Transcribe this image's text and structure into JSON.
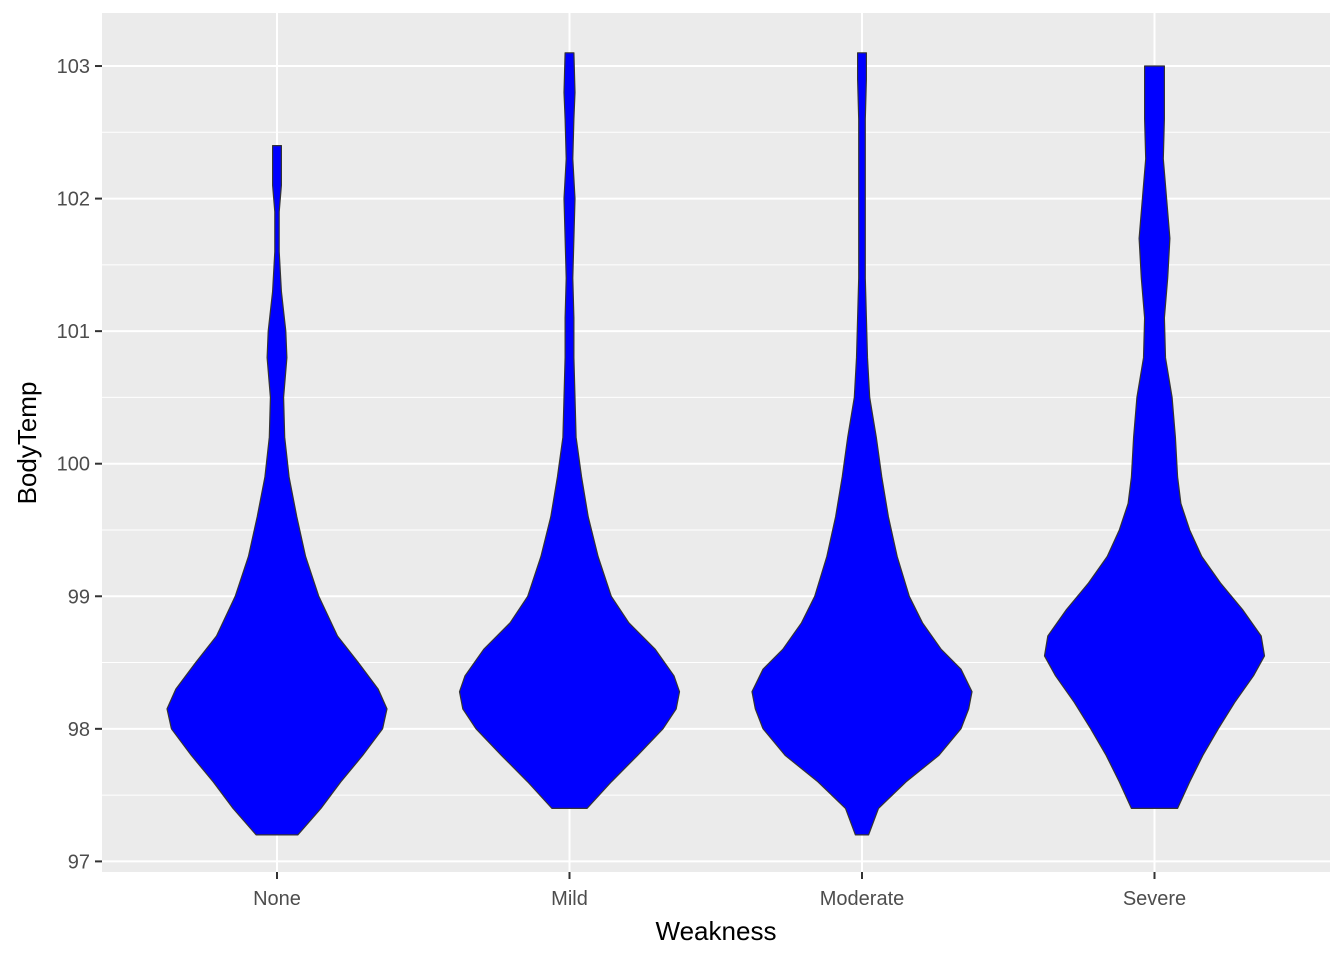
{
  "chart_data": {
    "type": "violin",
    "title": "",
    "xlabel": "Weakness",
    "ylabel": "BodyTemp",
    "categories": [
      "None",
      "Mild",
      "Moderate",
      "Severe"
    ],
    "ylim": [
      96.92,
      103.4
    ],
    "y_ticks": [
      97,
      98,
      99,
      100,
      101,
      102,
      103
    ],
    "grid": true,
    "legend": "none",
    "colors": {
      "panel_background": "#ebebeb",
      "grid": "#ffffff",
      "fill": "#0000ff",
      "outline": "#333333"
    },
    "series": [
      {
        "category": "None",
        "min": 97.2,
        "max": 102.4,
        "density_profile": [
          [
            97.2,
            0.19
          ],
          [
            97.4,
            0.4
          ],
          [
            97.6,
            0.58
          ],
          [
            97.8,
            0.78
          ],
          [
            98.0,
            0.96
          ],
          [
            98.15,
            1.0
          ],
          [
            98.3,
            0.92
          ],
          [
            98.5,
            0.74
          ],
          [
            98.7,
            0.55
          ],
          [
            99.0,
            0.38
          ],
          [
            99.3,
            0.26
          ],
          [
            99.6,
            0.18
          ],
          [
            99.9,
            0.11
          ],
          [
            100.2,
            0.07
          ],
          [
            100.5,
            0.06
          ],
          [
            100.8,
            0.09
          ],
          [
            101.0,
            0.08
          ],
          [
            101.3,
            0.04
          ],
          [
            101.6,
            0.02
          ],
          [
            101.9,
            0.02
          ],
          [
            102.1,
            0.04
          ],
          [
            102.4,
            0.04
          ]
        ]
      },
      {
        "category": "Mild",
        "min": 97.4,
        "max": 103.1,
        "density_profile": [
          [
            97.4,
            0.16
          ],
          [
            97.6,
            0.38
          ],
          [
            97.8,
            0.62
          ],
          [
            98.0,
            0.85
          ],
          [
            98.15,
            0.97
          ],
          [
            98.28,
            1.0
          ],
          [
            98.4,
            0.95
          ],
          [
            98.6,
            0.78
          ],
          [
            98.8,
            0.54
          ],
          [
            99.0,
            0.38
          ],
          [
            99.3,
            0.26
          ],
          [
            99.6,
            0.17
          ],
          [
            99.9,
            0.11
          ],
          [
            100.2,
            0.06
          ],
          [
            100.5,
            0.05
          ],
          [
            100.8,
            0.04
          ],
          [
            101.1,
            0.04
          ],
          [
            101.4,
            0.03
          ],
          [
            101.7,
            0.04
          ],
          [
            102.0,
            0.05
          ],
          [
            102.3,
            0.03
          ],
          [
            102.6,
            0.04
          ],
          [
            102.8,
            0.05
          ],
          [
            103.1,
            0.04
          ]
        ]
      },
      {
        "category": "Moderate",
        "min": 97.2,
        "max": 103.1,
        "density_profile": [
          [
            97.2,
            0.06
          ],
          [
            97.4,
            0.15
          ],
          [
            97.6,
            0.4
          ],
          [
            97.8,
            0.7
          ],
          [
            98.0,
            0.9
          ],
          [
            98.15,
            0.97
          ],
          [
            98.28,
            1.0
          ],
          [
            98.45,
            0.9
          ],
          [
            98.6,
            0.72
          ],
          [
            98.8,
            0.55
          ],
          [
            99.0,
            0.43
          ],
          [
            99.3,
            0.32
          ],
          [
            99.6,
            0.24
          ],
          [
            99.9,
            0.18
          ],
          [
            100.2,
            0.13
          ],
          [
            100.5,
            0.07
          ],
          [
            100.8,
            0.05
          ],
          [
            101.1,
            0.04
          ],
          [
            101.4,
            0.03
          ],
          [
            101.7,
            0.03
          ],
          [
            102.0,
            0.03
          ],
          [
            102.3,
            0.03
          ],
          [
            102.6,
            0.03
          ],
          [
            102.9,
            0.04
          ],
          [
            103.1,
            0.04
          ]
        ]
      },
      {
        "category": "Severe",
        "min": 97.4,
        "max": 103.0,
        "density_profile": [
          [
            97.4,
            0.21
          ],
          [
            97.6,
            0.32
          ],
          [
            97.8,
            0.44
          ],
          [
            98.0,
            0.58
          ],
          [
            98.2,
            0.73
          ],
          [
            98.4,
            0.9
          ],
          [
            98.55,
            1.0
          ],
          [
            98.7,
            0.97
          ],
          [
            98.9,
            0.8
          ],
          [
            99.1,
            0.6
          ],
          [
            99.3,
            0.43
          ],
          [
            99.5,
            0.32
          ],
          [
            99.7,
            0.24
          ],
          [
            99.9,
            0.21
          ],
          [
            100.2,
            0.19
          ],
          [
            100.5,
            0.16
          ],
          [
            100.8,
            0.1
          ],
          [
            101.1,
            0.09
          ],
          [
            101.4,
            0.12
          ],
          [
            101.7,
            0.14
          ],
          [
            102.0,
            0.11
          ],
          [
            102.3,
            0.08
          ],
          [
            102.6,
            0.09
          ],
          [
            103.0,
            0.09
          ]
        ]
      }
    ]
  }
}
